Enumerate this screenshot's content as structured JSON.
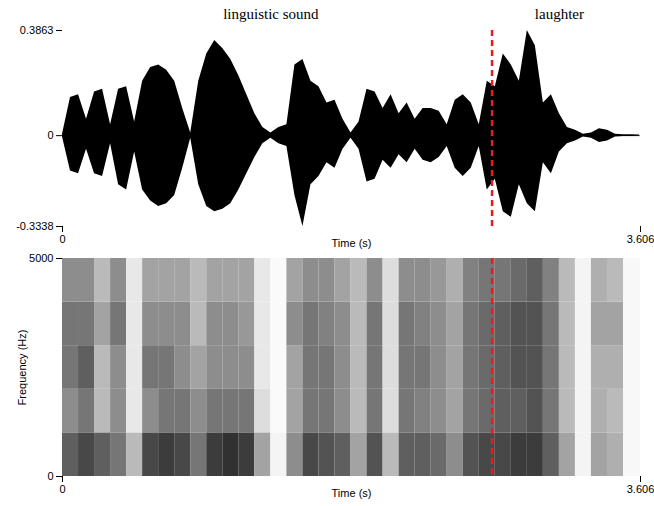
{
  "chart_data": [
    {
      "type": "area",
      "annotations": [
        {
          "text": "linguistic sound",
          "x": 1.3
        },
        {
          "text": "laughter",
          "x": 3.1
        }
      ],
      "divider": {
        "x": 2.68,
        "color": "#e02020",
        "line_style": "dashed"
      },
      "xlabel": "Time (s)",
      "color": "#000000",
      "x": [
        0.0,
        0.05,
        0.1,
        0.15,
        0.2,
        0.25,
        0.3,
        0.35,
        0.4,
        0.45,
        0.5,
        0.55,
        0.6,
        0.65,
        0.7,
        0.75,
        0.8,
        0.85,
        0.9,
        0.95,
        1.0,
        1.05,
        1.1,
        1.15,
        1.2,
        1.25,
        1.3,
        1.35,
        1.4,
        1.45,
        1.5,
        1.55,
        1.6,
        1.65,
        1.7,
        1.75,
        1.8,
        1.85,
        1.9,
        1.95,
        2.0,
        2.05,
        2.1,
        2.15,
        2.2,
        2.25,
        2.3,
        2.35,
        2.4,
        2.45,
        2.5,
        2.55,
        2.6,
        2.65,
        2.7,
        2.75,
        2.8,
        2.85,
        2.9,
        2.95,
        3.0,
        3.05,
        3.1,
        3.15,
        3.2,
        3.25,
        3.3,
        3.35,
        3.4,
        3.45,
        3.5,
        3.55,
        3.6
      ],
      "ymax": [
        0.005,
        0.14,
        0.15,
        0.06,
        0.16,
        0.17,
        0.04,
        0.17,
        0.18,
        0.05,
        0.2,
        0.25,
        0.26,
        0.24,
        0.2,
        0.1,
        0.01,
        0.2,
        0.3,
        0.35,
        0.32,
        0.28,
        0.22,
        0.15,
        0.08,
        0.03,
        0.01,
        0.03,
        0.04,
        0.26,
        0.28,
        0.2,
        0.18,
        0.12,
        0.13,
        0.06,
        0.01,
        0.05,
        0.17,
        0.16,
        0.1,
        0.15,
        0.08,
        0.12,
        0.06,
        0.1,
        0.1,
        0.09,
        0.04,
        0.13,
        0.15,
        0.12,
        0.04,
        0.2,
        0.18,
        0.3,
        0.26,
        0.2,
        0.3863,
        0.33,
        0.12,
        0.15,
        0.08,
        0.03,
        0.02,
        0.005,
        0.01,
        0.025,
        0.02,
        0.005,
        0.003,
        0.003,
        0.002
      ],
      "ymin": [
        -0.005,
        -0.13,
        -0.14,
        -0.05,
        -0.14,
        -0.15,
        -0.03,
        -0.18,
        -0.2,
        -0.06,
        -0.2,
        -0.24,
        -0.26,
        -0.25,
        -0.22,
        -0.12,
        -0.01,
        -0.18,
        -0.26,
        -0.28,
        -0.27,
        -0.25,
        -0.2,
        -0.14,
        -0.08,
        -0.03,
        -0.01,
        -0.03,
        -0.04,
        -0.22,
        -0.3338,
        -0.18,
        -0.15,
        -0.1,
        -0.12,
        -0.05,
        -0.01,
        -0.05,
        -0.17,
        -0.16,
        -0.09,
        -0.12,
        -0.07,
        -0.1,
        -0.05,
        -0.09,
        -0.1,
        -0.08,
        -0.04,
        -0.12,
        -0.15,
        -0.12,
        -0.04,
        -0.2,
        -0.16,
        -0.28,
        -0.3,
        -0.18,
        -0.25,
        -0.28,
        -0.1,
        -0.14,
        -0.06,
        -0.03,
        -0.02,
        -0.005,
        -0.01,
        -0.025,
        -0.02,
        -0.005,
        -0.003,
        -0.003,
        -0.002
      ],
      "xlim": [
        0,
        3.606
      ],
      "xticks": [
        0,
        3.606
      ],
      "ylim": [
        -0.3338,
        0.3863
      ],
      "yticks": [
        -0.3338,
        0,
        0.3863
      ]
    },
    {
      "type": "heatmap",
      "xlabel": "Time (s)",
      "ylabel": "Frequency (Hz)",
      "time_bins": [
        0,
        0.1,
        0.2,
        0.3,
        0.4,
        0.5,
        0.6,
        0.7,
        0.8,
        0.9,
        1.0,
        1.1,
        1.2,
        1.3,
        1.4,
        1.5,
        1.6,
        1.7,
        1.8,
        1.9,
        2.0,
        2.1,
        2.2,
        2.3,
        2.4,
        2.5,
        2.6,
        2.7,
        2.8,
        2.9,
        3.0,
        3.1,
        3.2,
        3.3,
        3.4,
        3.5,
        3.606
      ],
      "frequency_bins": [
        0,
        1000,
        2000,
        3000,
        4000,
        5000
      ],
      "intensity_range": [
        0,
        1
      ],
      "cells": [
        [
          0.7,
          0.5,
          0.6,
          0.6,
          0.5
        ],
        [
          0.8,
          0.6,
          0.7,
          0.6,
          0.5
        ],
        [
          0.7,
          0.3,
          0.3,
          0.4,
          0.3
        ],
        [
          0.6,
          0.5,
          0.5,
          0.6,
          0.5
        ],
        [
          0.3,
          0.1,
          0.1,
          0.1,
          0.1
        ],
        [
          0.8,
          0.5,
          0.6,
          0.5,
          0.4
        ],
        [
          0.85,
          0.6,
          0.6,
          0.5,
          0.4
        ],
        [
          0.8,
          0.6,
          0.5,
          0.5,
          0.4
        ],
        [
          0.6,
          0.5,
          0.4,
          0.3,
          0.3
        ],
        [
          0.85,
          0.6,
          0.5,
          0.5,
          0.4
        ],
        [
          0.9,
          0.6,
          0.5,
          0.5,
          0.4
        ],
        [
          0.85,
          0.6,
          0.5,
          0.45,
          0.4
        ],
        [
          0.4,
          0.15,
          0.1,
          0.1,
          0.1
        ],
        [
          0.05,
          0.02,
          0.02,
          0.02,
          0.02
        ],
        [
          0.5,
          0.4,
          0.4,
          0.5,
          0.4
        ],
        [
          0.8,
          0.6,
          0.6,
          0.6,
          0.5
        ],
        [
          0.75,
          0.6,
          0.6,
          0.55,
          0.5
        ],
        [
          0.7,
          0.5,
          0.5,
          0.5,
          0.4
        ],
        [
          0.4,
          0.3,
          0.3,
          0.3,
          0.3
        ],
        [
          0.75,
          0.6,
          0.6,
          0.6,
          0.5
        ],
        [
          0.3,
          0.15,
          0.15,
          0.15,
          0.15
        ],
        [
          0.7,
          0.6,
          0.6,
          0.6,
          0.5
        ],
        [
          0.7,
          0.55,
          0.6,
          0.55,
          0.5
        ],
        [
          0.65,
          0.5,
          0.5,
          0.5,
          0.45
        ],
        [
          0.5,
          0.4,
          0.4,
          0.4,
          0.35
        ],
        [
          0.75,
          0.6,
          0.6,
          0.6,
          0.55
        ],
        [
          0.8,
          0.65,
          0.65,
          0.65,
          0.6
        ],
        [
          0.8,
          0.7,
          0.7,
          0.7,
          0.6
        ],
        [
          0.85,
          0.7,
          0.75,
          0.75,
          0.65
        ],
        [
          0.85,
          0.75,
          0.75,
          0.75,
          0.7
        ],
        [
          0.7,
          0.6,
          0.6,
          0.6,
          0.55
        ],
        [
          0.4,
          0.3,
          0.3,
          0.3,
          0.3
        ],
        [
          0.05,
          0.05,
          0.05,
          0.05,
          0.05
        ],
        [
          0.4,
          0.35,
          0.35,
          0.4,
          0.35
        ],
        [
          0.35,
          0.3,
          0.35,
          0.4,
          0.3
        ],
        [
          0.03,
          0.03,
          0.03,
          0.03,
          0.03
        ]
      ],
      "xlim": [
        0,
        3.606
      ],
      "xticks": [
        0,
        3.606
      ],
      "ylim": [
        0,
        5000
      ],
      "yticks": [
        0,
        5000
      ]
    }
  ]
}
